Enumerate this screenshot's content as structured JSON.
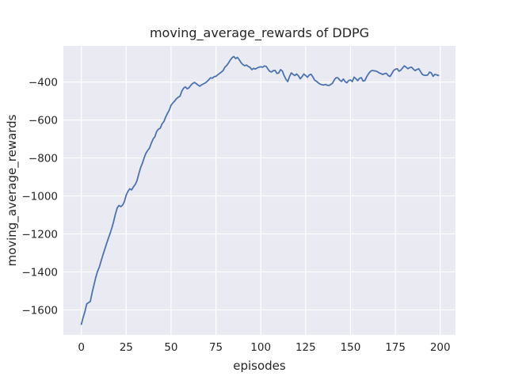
{
  "chart_data": {
    "type": "line",
    "title": "moving_average_rewards of DDPG",
    "xlabel": "episodes",
    "ylabel": "moving_average_rewards",
    "xlim": [
      -10,
      208.5
    ],
    "ylim": [
      -1731,
      -210
    ],
    "xticks": [
      0,
      25,
      50,
      75,
      100,
      125,
      150,
      175,
      200
    ],
    "yticks": [
      -400,
      -600,
      -800,
      -1000,
      -1200,
      -1400,
      -1600
    ],
    "grid": true,
    "legend": false,
    "colors": {
      "line": "#4C72B0",
      "plot_background": "#EAEAF2",
      "gridline": "#FFFFFF",
      "text": "#262626",
      "figure_background": "#FFFFFF"
    },
    "series": [
      {
        "name": "moving_average_rewards",
        "x_start": 0,
        "x_step": 1,
        "y": [
          -1675,
          -1640,
          -1608,
          -1568,
          -1562,
          -1555,
          -1510,
          -1470,
          -1430,
          -1398,
          -1375,
          -1342,
          -1312,
          -1282,
          -1252,
          -1225,
          -1198,
          -1168,
          -1135,
          -1095,
          -1062,
          -1050,
          -1056,
          -1048,
          -1030,
          -995,
          -975,
          -962,
          -968,
          -952,
          -940,
          -920,
          -885,
          -852,
          -828,
          -800,
          -775,
          -760,
          -748,
          -722,
          -700,
          -688,
          -660,
          -648,
          -643,
          -620,
          -608,
          -585,
          -565,
          -548,
          -522,
          -510,
          -500,
          -488,
          -480,
          -474,
          -448,
          -432,
          -426,
          -436,
          -430,
          -418,
          -408,
          -402,
          -408,
          -416,
          -422,
          -415,
          -410,
          -405,
          -398,
          -388,
          -378,
          -380,
          -372,
          -370,
          -362,
          -355,
          -348,
          -340,
          -322,
          -313,
          -300,
          -284,
          -272,
          -266,
          -277,
          -270,
          -283,
          -298,
          -308,
          -314,
          -311,
          -318,
          -323,
          -335,
          -328,
          -332,
          -326,
          -322,
          -320,
          -322,
          -316,
          -318,
          -332,
          -344,
          -347,
          -340,
          -339,
          -355,
          -352,
          -335,
          -342,
          -366,
          -385,
          -398,
          -372,
          -352,
          -360,
          -366,
          -358,
          -368,
          -383,
          -372,
          -358,
          -366,
          -375,
          -363,
          -359,
          -373,
          -390,
          -396,
          -404,
          -411,
          -414,
          -416,
          -413,
          -417,
          -418,
          -413,
          -406,
          -388,
          -377,
          -378,
          -390,
          -397,
          -384,
          -398,
          -404,
          -392,
          -389,
          -398,
          -374,
          -383,
          -393,
          -380,
          -377,
          -395,
          -392,
          -372,
          -357,
          -345,
          -339,
          -341,
          -342,
          -346,
          -352,
          -356,
          -360,
          -356,
          -354,
          -366,
          -371,
          -356,
          -340,
          -333,
          -330,
          -343,
          -338,
          -326,
          -315,
          -322,
          -330,
          -324,
          -322,
          -332,
          -340,
          -334,
          -330,
          -345,
          -360,
          -364,
          -365,
          -363,
          -348,
          -352,
          -370,
          -360,
          -362,
          -366
        ]
      }
    ]
  }
}
